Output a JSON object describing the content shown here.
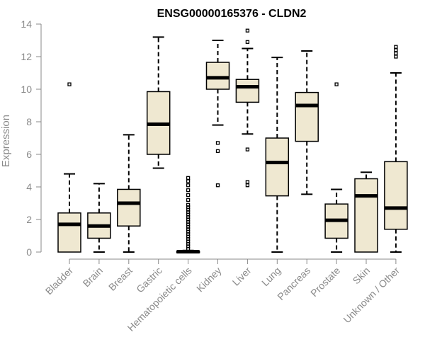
{
  "chart_data": {
    "type": "boxplot",
    "title": "ENSG00000165376 - CLDN2",
    "xlabel": "",
    "ylabel": "Expression",
    "ylim": [
      0,
      14
    ],
    "yticks": [
      0,
      2,
      4,
      6,
      8,
      10,
      12,
      14
    ],
    "box_fill": "#efe8d1",
    "box_stroke": "#000000",
    "categories": [
      "Bladder",
      "Brain",
      "Breast",
      "Gastric",
      "Hematopoietic cells",
      "Kidney",
      "Liver",
      "Lung",
      "Pancreas",
      "Prostate",
      "Skin",
      "Unknown / Other"
    ],
    "boxes": [
      {
        "whisker_low": 0,
        "q1": 0,
        "median": 1.7,
        "q3": 2.4,
        "whisker_high": 4.8,
        "outliers": [
          10.3
        ]
      },
      {
        "whisker_low": 0,
        "q1": 0.85,
        "median": 1.6,
        "q3": 2.4,
        "whisker_high": 4.2,
        "outliers": []
      },
      {
        "whisker_low": 0,
        "q1": 1.6,
        "median": 3.0,
        "q3": 3.85,
        "whisker_high": 7.2,
        "outliers": []
      },
      {
        "whisker_low": 5.15,
        "q1": 6.0,
        "median": 7.85,
        "q3": 9.85,
        "whisker_high": 13.2,
        "outliers": []
      },
      {
        "whisker_low": 0,
        "q1": 0,
        "median": 0.02,
        "q3": 0.05,
        "whisker_high": 0.1,
        "outliers": [
          0.2,
          0.35,
          0.5,
          0.65,
          0.8,
          0.95,
          1.1,
          1.25,
          1.4,
          1.55,
          1.7,
          1.85,
          2.0,
          2.15,
          2.3,
          2.45,
          2.6,
          2.75,
          2.9,
          3.2,
          3.5,
          3.8,
          4.1,
          4.35,
          4.55
        ]
      },
      {
        "whisker_low": 7.8,
        "q1": 10.0,
        "median": 10.7,
        "q3": 11.65,
        "whisker_high": 13.0,
        "outliers": [
          6.7,
          6.2,
          4.1
        ]
      },
      {
        "whisker_low": 7.25,
        "q1": 9.2,
        "median": 10.15,
        "q3": 10.6,
        "whisker_high": 12.5,
        "outliers": [
          13.6,
          12.9,
          6.3,
          4.3,
          4.1
        ]
      },
      {
        "whisker_low": 0,
        "q1": 3.45,
        "median": 5.5,
        "q3": 7.0,
        "whisker_high": 11.95,
        "outliers": []
      },
      {
        "whisker_low": 3.55,
        "q1": 6.8,
        "median": 9.0,
        "q3": 9.8,
        "whisker_high": 12.35,
        "outliers": []
      },
      {
        "whisker_low": 0,
        "q1": 0.85,
        "median": 1.95,
        "q3": 2.95,
        "whisker_high": 3.85,
        "outliers": [
          10.3
        ]
      },
      {
        "whisker_low": 0,
        "q1": 0,
        "median": 3.45,
        "q3": 4.5,
        "whisker_high": 4.9,
        "outliers": []
      },
      {
        "whisker_low": 0,
        "q1": 1.4,
        "median": 2.7,
        "q3": 5.55,
        "whisker_high": 11.0,
        "outliers": [
          12.0,
          12.2,
          12.4,
          12.6
        ]
      }
    ]
  }
}
